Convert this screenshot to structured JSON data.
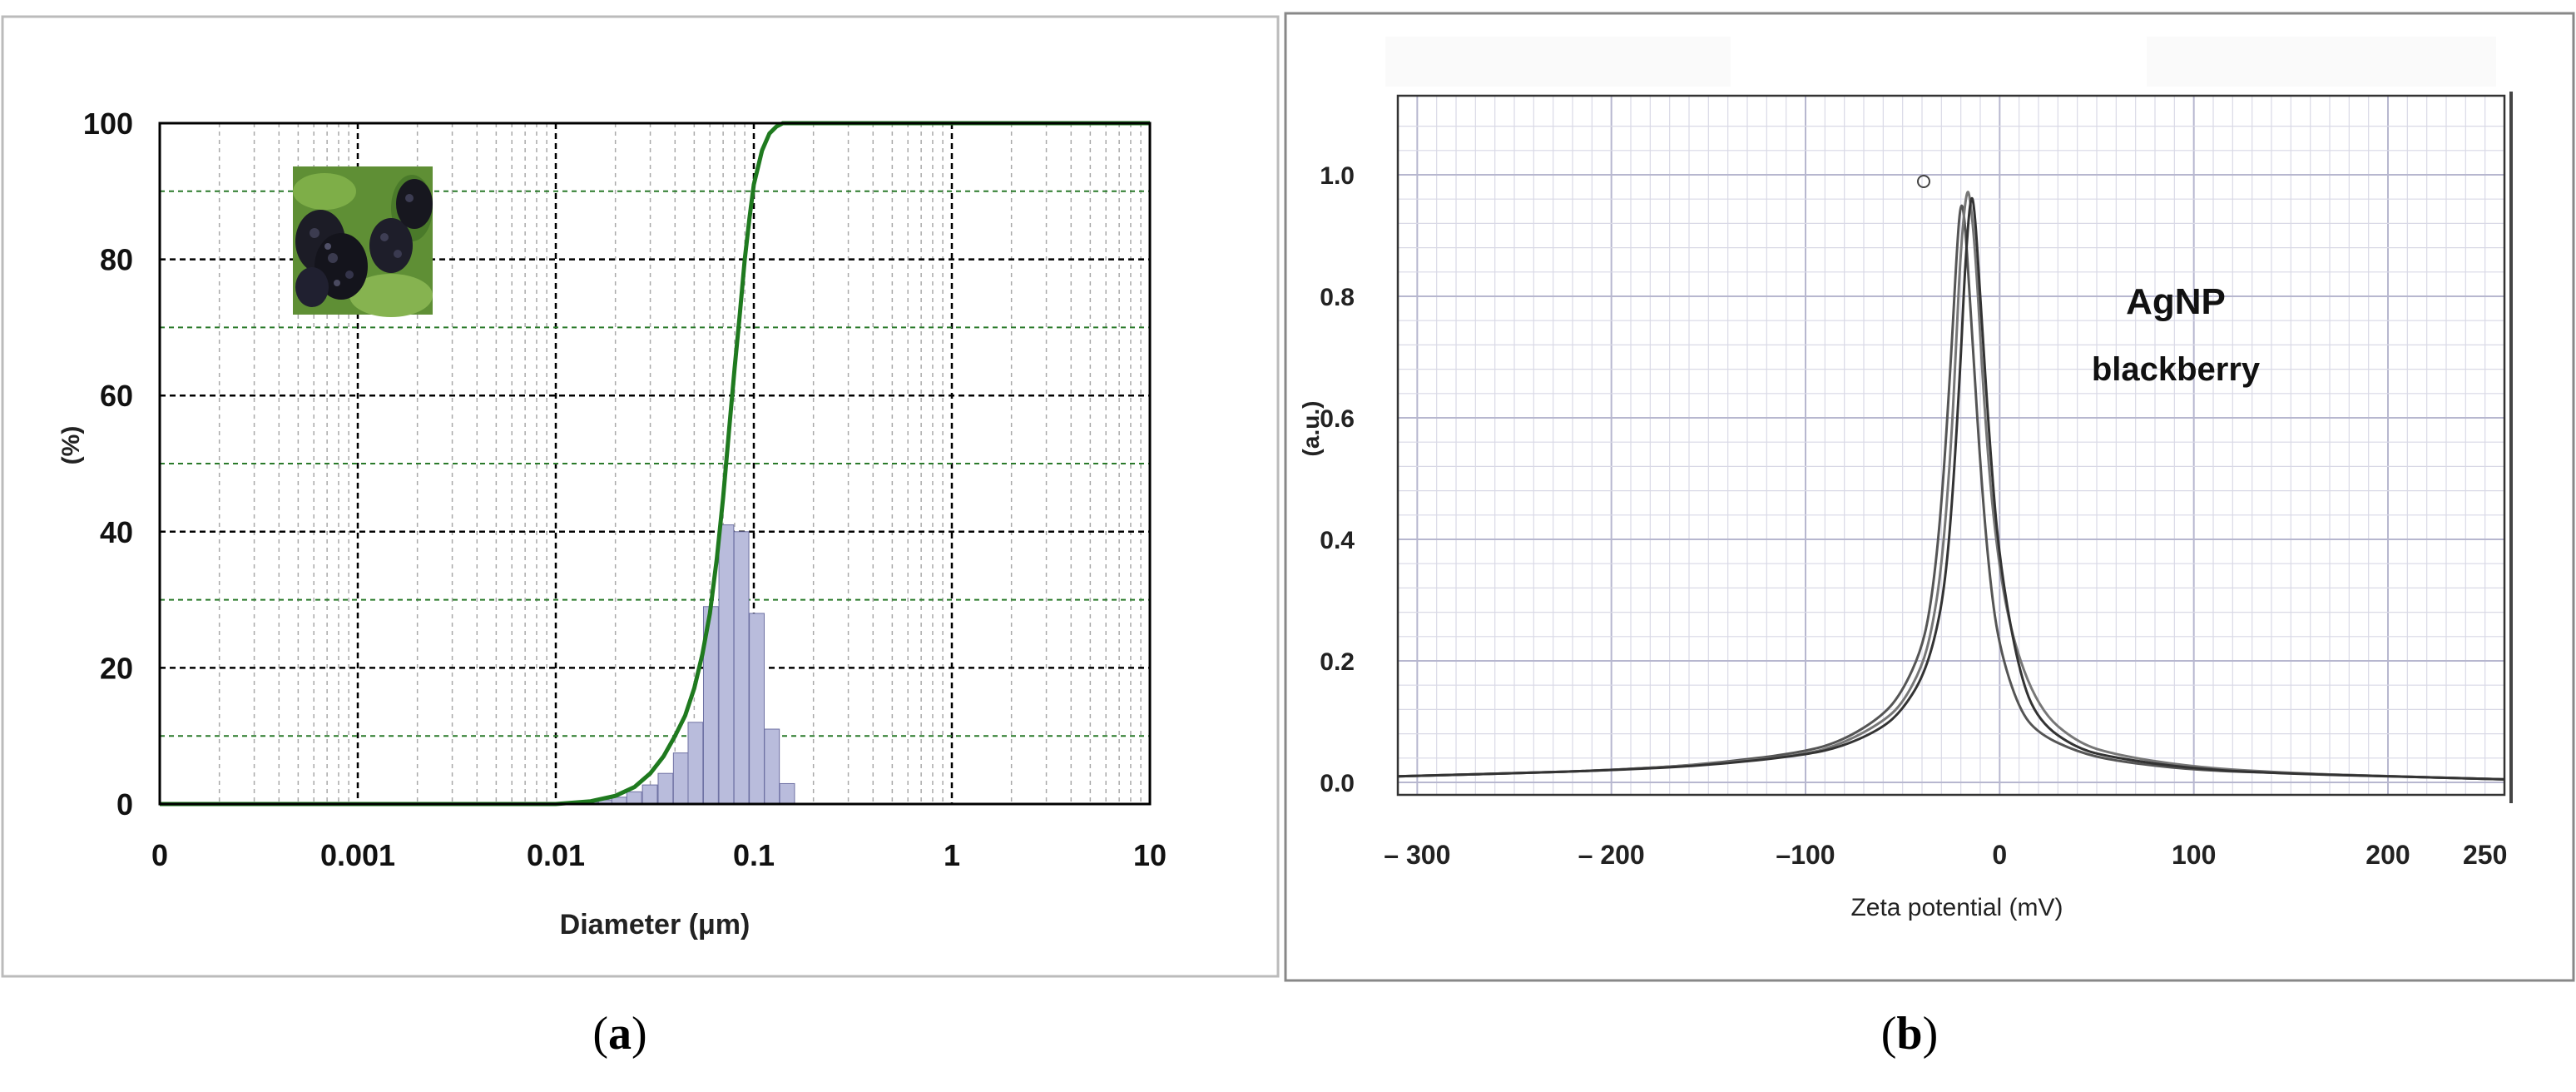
{
  "chart_data": [
    {
      "type": "bar",
      "panel_label": "a",
      "xlabel": "Diameter (μm)",
      "ylabel": "(%)",
      "x_scale": "log",
      "xticks": [
        "0",
        "0.001",
        "0.01",
        "0.1",
        "1",
        "10"
      ],
      "yticks": [
        "0",
        "20",
        "40",
        "60",
        "80",
        "100"
      ],
      "ylim": [
        0,
        100
      ],
      "grid": true,
      "inset": "photo of blackberries (top-left)",
      "series": [
        {
          "type": "bar",
          "x": [
            0.015,
            0.018,
            0.021,
            0.025,
            0.03,
            0.036,
            0.043,
            0.051,
            0.061,
            0.073,
            0.087,
            0.104,
            0.124,
            0.148
          ],
          "values": [
            0.3,
            0.6,
            1.0,
            1.8,
            2.8,
            4.5,
            7.5,
            12.0,
            29.0,
            41.0,
            40.0,
            28.0,
            11.0,
            3.0
          ]
        },
        {
          "type": "line",
          "color": "#1f7a1f",
          "x": [
            0.0001,
            0.001,
            0.01,
            0.015,
            0.02,
            0.025,
            0.03,
            0.035,
            0.04,
            0.045,
            0.05,
            0.055,
            0.06,
            0.065,
            0.07,
            0.075,
            0.08,
            0.085,
            0.09,
            0.095,
            0.1,
            0.11,
            0.12,
            0.13,
            0.14,
            0.15,
            0.16,
            10
          ],
          "values": [
            0,
            0,
            0,
            0.4,
            1.2,
            2.5,
            4.5,
            7,
            10,
            13,
            17,
            22,
            28,
            36,
            45,
            55,
            64,
            72,
            80,
            86,
            91,
            96,
            98.5,
            99.5,
            100,
            100,
            100,
            100
          ]
        }
      ]
    },
    {
      "type": "line",
      "panel_label": "b",
      "title": "AgNP\nblackberry",
      "title_lines": [
        "AgNP",
        "blackberry"
      ],
      "xlabel": "Zeta potential (mV)",
      "ylabel": "(a.u.)",
      "xticks": [
        "– 300",
        "– 200",
        "–100",
        "0",
        "100",
        "200",
        "250"
      ],
      "yticks": [
        "0.0",
        "0.2",
        "0.4",
        "0.6",
        "0.8",
        "1.0"
      ],
      "xlim": [
        -310,
        260
      ],
      "ylim": [
        0,
        1.1
      ],
      "grid": true,
      "series": [
        {
          "color": "#555555",
          "x": [
            -310,
            -250,
            -200,
            -150,
            -100,
            -80,
            -60,
            -50,
            -40,
            -35,
            -30,
            -25,
            -22,
            -20,
            -18,
            -15,
            -10,
            -5,
            0,
            10,
            20,
            40,
            60,
            100,
            150,
            200,
            260
          ],
          "values": [
            0.01,
            0.015,
            0.02,
            0.03,
            0.05,
            0.07,
            0.11,
            0.15,
            0.22,
            0.3,
            0.45,
            0.7,
            0.88,
            0.96,
            0.93,
            0.78,
            0.52,
            0.33,
            0.22,
            0.12,
            0.08,
            0.05,
            0.035,
            0.02,
            0.015,
            0.01,
            0.005
          ]
        },
        {
          "color": "#777777",
          "x": [
            -310,
            -250,
            -200,
            -150,
            -100,
            -80,
            -60,
            -50,
            -40,
            -35,
            -30,
            -25,
            -22,
            -20,
            -17,
            -15,
            -12,
            -8,
            -3,
            5,
            20,
            40,
            60,
            100,
            150,
            200,
            260
          ],
          "values": [
            0.01,
            0.015,
            0.02,
            0.03,
            0.045,
            0.065,
            0.1,
            0.13,
            0.19,
            0.25,
            0.35,
            0.55,
            0.75,
            0.88,
            0.98,
            0.96,
            0.85,
            0.62,
            0.42,
            0.25,
            0.12,
            0.065,
            0.045,
            0.025,
            0.015,
            0.01,
            0.005
          ]
        },
        {
          "color": "#333333",
          "x": [
            -310,
            -250,
            -200,
            -150,
            -100,
            -80,
            -60,
            -50,
            -40,
            -33,
            -28,
            -24,
            -20,
            -18,
            -15,
            -13,
            -10,
            -5,
            0,
            10,
            20,
            40,
            60,
            100,
            150,
            200,
            260
          ],
          "values": [
            0.01,
            0.015,
            0.02,
            0.028,
            0.045,
            0.06,
            0.09,
            0.12,
            0.17,
            0.24,
            0.33,
            0.48,
            0.7,
            0.84,
            0.97,
            0.95,
            0.8,
            0.55,
            0.36,
            0.18,
            0.1,
            0.055,
            0.04,
            0.022,
            0.014,
            0.01,
            0.005
          ]
        }
      ]
    }
  ],
  "captions": {
    "a": "a",
    "b": "b"
  }
}
